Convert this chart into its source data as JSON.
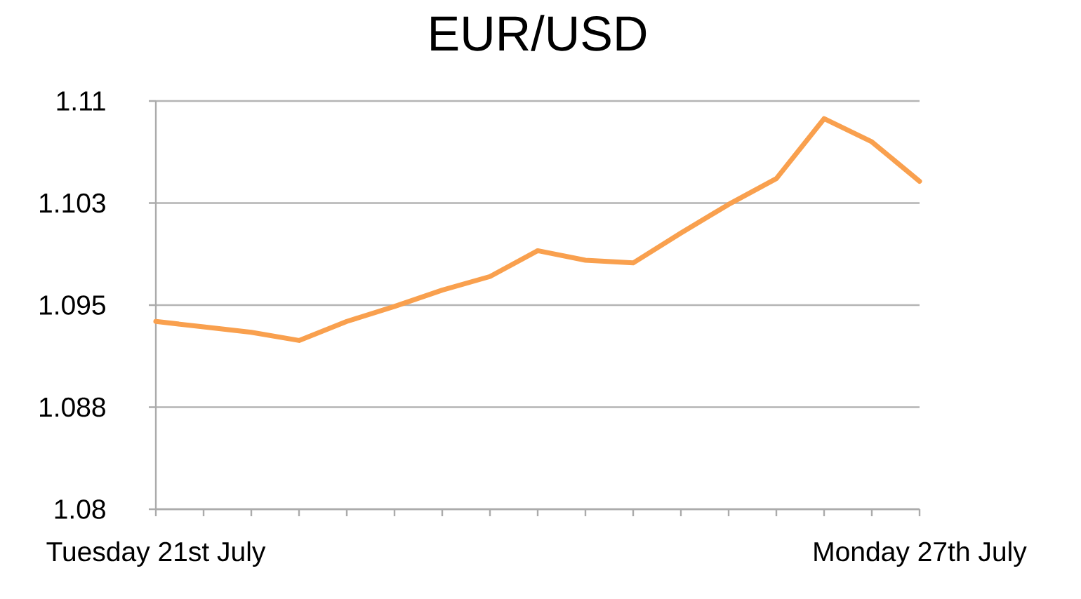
{
  "chart_data": {
    "type": "line",
    "title": "EUR/USD",
    "categories": [
      "Tuesday 21st July",
      null,
      null,
      null,
      null,
      null,
      null,
      null,
      null,
      null,
      null,
      null,
      null,
      null,
      null,
      null,
      "Monday 27th July"
    ],
    "series": [
      {
        "color": "#f9a04e",
        "values": [
          1.0938,
          1.0934,
          1.093,
          1.0924,
          1.0938,
          1.0949,
          1.0961,
          1.0971,
          1.099,
          1.0983,
          1.0981,
          1.1003,
          1.1024,
          1.1043,
          1.1087,
          1.107,
          1.1041
        ]
      }
    ],
    "ylim": [
      1.08,
      1.11
    ],
    "yticks": [
      1.08,
      {
        "value": 1.0875,
        "label": "1.088"
      },
      1.095,
      {
        "value": 1.1025,
        "label": "1.103"
      },
      1.11
    ],
    "grid": "y",
    "line_style": "solid"
  }
}
